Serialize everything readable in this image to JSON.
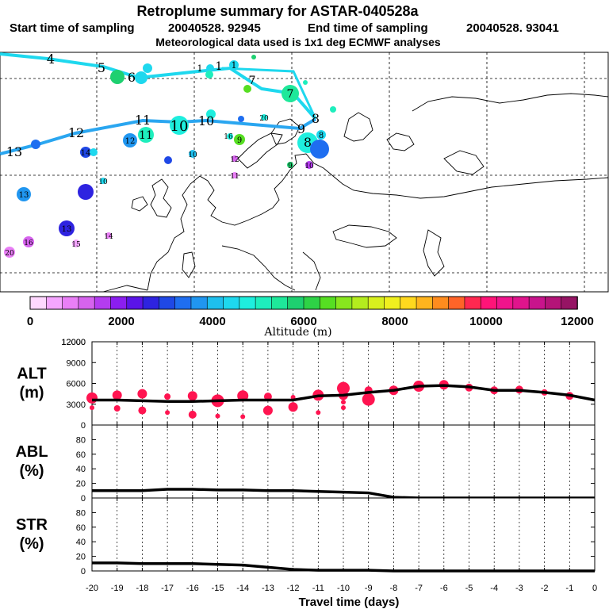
{
  "header": {
    "title": "Retroplume summary for ASTAR-040528a",
    "start_label": "Start time of sampling",
    "start_value": "20040528. 92945",
    "end_label": "End time of sampling",
    "end_value": "20040528. 93041",
    "met_line": "Meteorological data used is 1x1 deg ECMWF analyses"
  },
  "colorbar": {
    "colors": [
      "#ffd8ff",
      "#f5a6ff",
      "#e97ff6",
      "#d663ee",
      "#b43cf0",
      "#8b1ef0",
      "#5a14e8",
      "#2e23e0",
      "#1f48e6",
      "#1f6ef0",
      "#2096f0",
      "#1ebfee",
      "#1ed8ee",
      "#1eeede",
      "#1eeebd",
      "#1ee89a",
      "#1ed070",
      "#2ed246",
      "#56de22",
      "#88e61e",
      "#b4ec1e",
      "#d8f01e",
      "#f0f01e",
      "#ffd81e",
      "#ffb41e",
      "#ff8c1e",
      "#ff6428",
      "#ff2850",
      "#ff1478",
      "#f0148c",
      "#e0148c",
      "#c8148c",
      "#b41478",
      "#961464"
    ],
    "ticks": [
      "0",
      "2000",
      "4000",
      "6000",
      "8000",
      "10000",
      "12000"
    ],
    "label": "Altitude (m)"
  },
  "chart_data": [
    {
      "type": "map",
      "description_units": "retroplume centroid labels (days before release)",
      "tracks": [
        {
          "name": "northern track",
          "labels": [
            "4",
            "5",
            "6",
            "6",
            "7",
            "1",
            "1",
            "1",
            "7",
            "7",
            "8"
          ]
        },
        {
          "name": "central track",
          "labels": [
            "13",
            "12",
            "11",
            "10",
            "10",
            "9",
            "8",
            "8",
            "8"
          ]
        }
      ],
      "point_labels": [
        "13",
        "12",
        "11",
        "10",
        "10",
        "9",
        "8",
        "8",
        "8",
        "7",
        "7",
        "6",
        "5",
        "4",
        "1",
        "1",
        "1",
        "12",
        "13",
        "13",
        "15",
        "16",
        "20",
        "14",
        "14",
        "16",
        "12",
        "10",
        "11",
        "11",
        "9",
        "9",
        "10",
        "20",
        "10"
      ]
    },
    {
      "type": "line",
      "name": "ALT",
      "ylabel": "ALT\n(m)",
      "ylim": [
        0,
        12000
      ],
      "yticks": [
        "0",
        "3000",
        "6000",
        "9000",
        "12000"
      ],
      "x": [
        -20,
        -19,
        -18,
        -17,
        -16,
        -15,
        -14,
        -13,
        -12,
        -11,
        -10,
        -9,
        -8,
        -7,
        -6,
        -5,
        -4,
        -3,
        -2,
        -1,
        0
      ],
      "values": [
        3600,
        3600,
        3500,
        3400,
        3400,
        3500,
        3600,
        3600,
        3600,
        4200,
        4300,
        4700,
        5000,
        5600,
        5700,
        5500,
        5000,
        5000,
        4700,
        4300,
        3600
      ],
      "scatter": [
        {
          "x": -20,
          "y": 3900,
          "s": 7
        },
        {
          "x": -20,
          "y": 2500,
          "s": 3
        },
        {
          "x": -19,
          "y": 4300,
          "s": 6
        },
        {
          "x": -19,
          "y": 2400,
          "s": 4
        },
        {
          "x": -18,
          "y": 4500,
          "s": 6
        },
        {
          "x": -18,
          "y": 2100,
          "s": 5
        },
        {
          "x": -17,
          "y": 4100,
          "s": 4
        },
        {
          "x": -17,
          "y": 1800,
          "s": 3
        },
        {
          "x": -16,
          "y": 4200,
          "s": 6
        },
        {
          "x": -16,
          "y": 1500,
          "s": 5
        },
        {
          "x": -15,
          "y": 3500,
          "s": 8
        },
        {
          "x": -15,
          "y": 1300,
          "s": 3
        },
        {
          "x": -14,
          "y": 4200,
          "s": 7
        },
        {
          "x": -14,
          "y": 1200,
          "s": 3
        },
        {
          "x": -13,
          "y": 4100,
          "s": 5
        },
        {
          "x": -13,
          "y": 2100,
          "s": 6
        },
        {
          "x": -12,
          "y": 4000,
          "s": 3
        },
        {
          "x": -12,
          "y": 2600,
          "s": 6
        },
        {
          "x": -11,
          "y": 4300,
          "s": 7
        },
        {
          "x": -11,
          "y": 1800,
          "s": 3
        },
        {
          "x": -10,
          "y": 5300,
          "s": 8
        },
        {
          "x": -10,
          "y": 4300,
          "s": 6
        },
        {
          "x": -10,
          "y": 3300,
          "s": 3
        },
        {
          "x": -10,
          "y": 2500,
          "s": 3
        },
        {
          "x": -9,
          "y": 3700,
          "s": 8
        },
        {
          "x": -9,
          "y": 5000,
          "s": 5
        },
        {
          "x": -8,
          "y": 5000,
          "s": 6
        },
        {
          "x": -7,
          "y": 5600,
          "s": 7
        },
        {
          "x": -6,
          "y": 5800,
          "s": 6
        },
        {
          "x": -5,
          "y": 5400,
          "s": 5
        },
        {
          "x": -4,
          "y": 5000,
          "s": 5
        },
        {
          "x": -3,
          "y": 5100,
          "s": 5
        },
        {
          "x": -2,
          "y": 4700,
          "s": 4
        },
        {
          "x": -1,
          "y": 4200,
          "s": 5
        }
      ]
    },
    {
      "type": "line",
      "name": "ABL",
      "ylabel": "ABL\n(%)",
      "ylim": [
        0,
        100
      ],
      "yticks": [
        "0",
        "20",
        "40",
        "60",
        "80"
      ],
      "x": [
        -20,
        -19,
        -18,
        -17,
        -16,
        -15,
        -14,
        -13,
        -12,
        -11,
        -10,
        -9,
        -8,
        -7,
        -6,
        -5,
        -4,
        -3,
        -2,
        -1,
        0
      ],
      "values": [
        10,
        10,
        10,
        12,
        12,
        11,
        11,
        10,
        10,
        9,
        8,
        7,
        1,
        0,
        0,
        0,
        0,
        0,
        0,
        0,
        0
      ]
    },
    {
      "type": "line",
      "name": "STR",
      "ylabel": "STR\n(%)",
      "ylim": [
        0,
        100
      ],
      "yticks": [
        "0",
        "20",
        "40",
        "60",
        "80"
      ],
      "xlabel": "Travel time (days)",
      "xticks": [
        "-20",
        "-19",
        "-18",
        "-17",
        "-16",
        "-15",
        "-14",
        "-13",
        "-12",
        "-11",
        "-10",
        "-9",
        "-8",
        "-7",
        "-6",
        "-5",
        "-4",
        "-3",
        "-2",
        "-1",
        "0"
      ],
      "x": [
        -20,
        -19,
        -18,
        -17,
        -16,
        -15,
        -14,
        -13,
        -12,
        -11,
        -10,
        -9,
        -8,
        -7,
        -6,
        -5,
        -4,
        -3,
        -2,
        -1,
        0
      ],
      "values": [
        11,
        11,
        10,
        10,
        10,
        9,
        8,
        5,
        2,
        1,
        1,
        1,
        0,
        0,
        0,
        0,
        0,
        0,
        0,
        0,
        0
      ]
    }
  ]
}
